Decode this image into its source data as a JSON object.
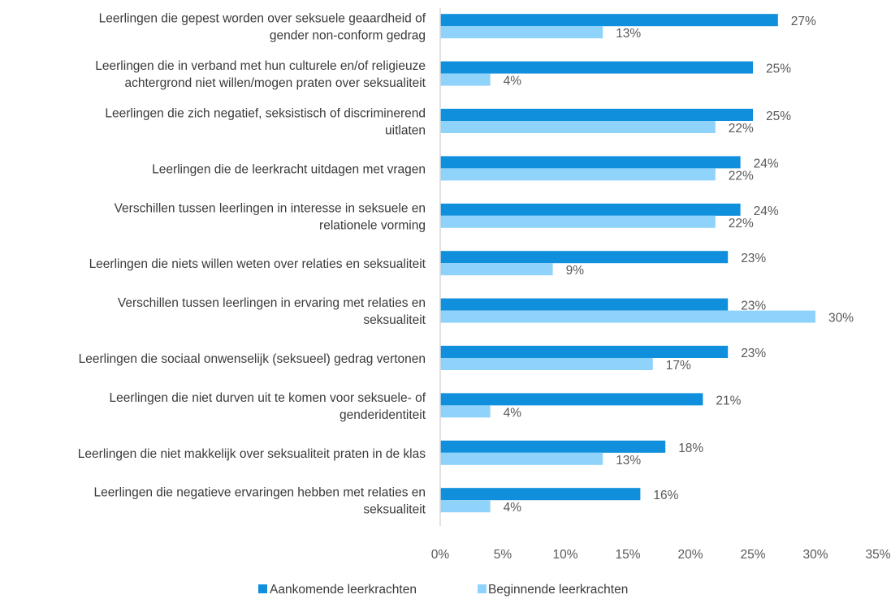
{
  "chart_data": {
    "type": "bar",
    "orientation": "horizontal",
    "categories": [
      [
        "Leerlingen die gepest worden over seksuele geaardheid of",
        "gender non-conform gedrag"
      ],
      [
        "Leerlingen die in verband met hun culturele en/of religieuze",
        "achtergrond niet willen/mogen praten over seksualiteit"
      ],
      [
        "Leerlingen die zich negatief, seksistisch of discriminerend",
        "uitlaten"
      ],
      [
        "Leerlingen die de leerkracht uitdagen met vragen"
      ],
      [
        "Verschillen tussen leerlingen in interesse in seksuele en",
        "relationele vorming"
      ],
      [
        "Leerlingen die niets willen weten over relaties en seksualiteit"
      ],
      [
        "Verschillen tussen leerlingen in ervaring met relaties en",
        "seksualiteit"
      ],
      [
        "Leerlingen die sociaal onwenselijk (seksueel) gedrag vertonen"
      ],
      [
        "Leerlingen die niet durven uit te komen voor seksuele- of",
        "genderidentiteit"
      ],
      [
        "Leerlingen die niet makkelijk over seksualiteit praten in de klas"
      ],
      [
        "Leerlingen die negatieve ervaringen hebben met relaties en",
        "seksualiteit"
      ]
    ],
    "series": [
      {
        "name": "Aankomende leerkrachten",
        "color": "#0f8fdc",
        "values": [
          27,
          25,
          25,
          24,
          24,
          23,
          23,
          23,
          21,
          18,
          16
        ],
        "labels": [
          "27%",
          "25%",
          "25%",
          "24%",
          "24%",
          "23%",
          "23%",
          "23%",
          "21%",
          "18%",
          "16%"
        ]
      },
      {
        "name": "Beginnende leerkrachten",
        "color": "#8fd3fa",
        "values": [
          13,
          4,
          22,
          22,
          22,
          9,
          30,
          17,
          4,
          13,
          4
        ],
        "labels": [
          "13%",
          "4%",
          "22%",
          "22%",
          "22%",
          "9%",
          "30%",
          "17%",
          "4%",
          "13%",
          "4%"
        ]
      }
    ],
    "xlim": [
      0,
      35
    ],
    "xticks": [
      0,
      5,
      10,
      15,
      20,
      25,
      30,
      35
    ],
    "xtick_labels": [
      "0%",
      "5%",
      "10%",
      "15%",
      "20%",
      "25%",
      "30%",
      "35%"
    ],
    "grid": false,
    "legend_position": "bottom",
    "title": "",
    "xlabel": "",
    "ylabel": ""
  }
}
